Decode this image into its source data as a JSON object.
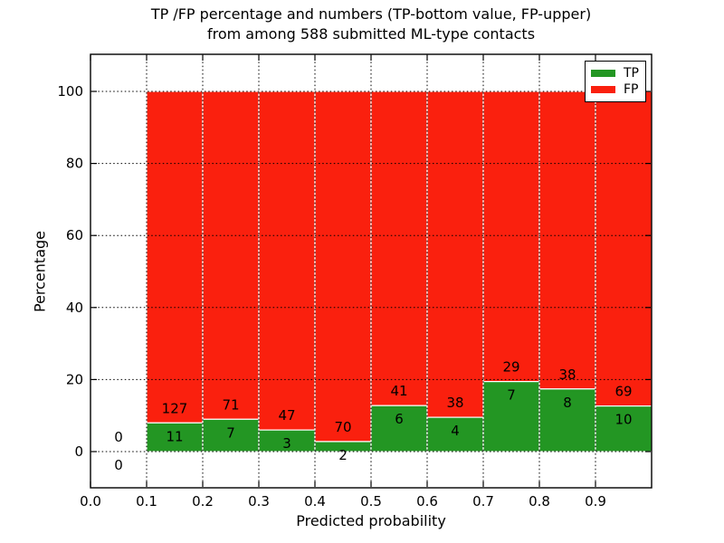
{
  "figure": {
    "background": "#ffffff"
  },
  "title": {
    "line1": "TP /FP percentage and numbers (TP-bottom value, FP-upper)",
    "line2": "from among 588 submitted ML-type contacts"
  },
  "axes": {
    "xlabel": "Predicted probability",
    "ylabel": "Percentage"
  },
  "legend": {
    "position": "upper right",
    "items": [
      {
        "label": "TP",
        "color": "#239623"
      },
      {
        "label": "FP",
        "color": "#fa200e"
      }
    ]
  },
  "chart_data": {
    "type": "bar",
    "stacked": true,
    "normalized_to_percent": true,
    "title": "TP /FP percentage and numbers (TP-bottom value, FP-upper) from among 588 submitted ML-type contacts",
    "xlabel": "Predicted probability",
    "ylabel": "Percentage",
    "xlim": [
      0.0,
      1.0
    ],
    "ylim": [
      -10,
      110
    ],
    "grid": "dotted",
    "legend_position": "upper right",
    "total_contacts": 588,
    "bin_edges": [
      0.0,
      0.1,
      0.2,
      0.3,
      0.4,
      0.5,
      0.6,
      0.7,
      0.8,
      0.9,
      1.0
    ],
    "xtick_labels": [
      "0.0",
      "0.1",
      "0.2",
      "0.3",
      "0.4",
      "0.5",
      "0.6",
      "0.7",
      "0.8",
      "0.9"
    ],
    "ytick_values": [
      0,
      20,
      40,
      60,
      80,
      100
    ],
    "series": [
      {
        "name": "TP",
        "color": "#239623",
        "counts": [
          0,
          11,
          7,
          3,
          2,
          6,
          4,
          7,
          8,
          10
        ]
      },
      {
        "name": "FP",
        "color": "#fa200e",
        "counts": [
          0,
          127,
          71,
          47,
          70,
          41,
          38,
          29,
          38,
          69
        ]
      }
    ],
    "tp_percent_heights": [
      0,
      7.97,
      8.97,
      6.0,
      2.78,
      12.77,
      9.52,
      19.44,
      17.39,
      12.66
    ]
  }
}
